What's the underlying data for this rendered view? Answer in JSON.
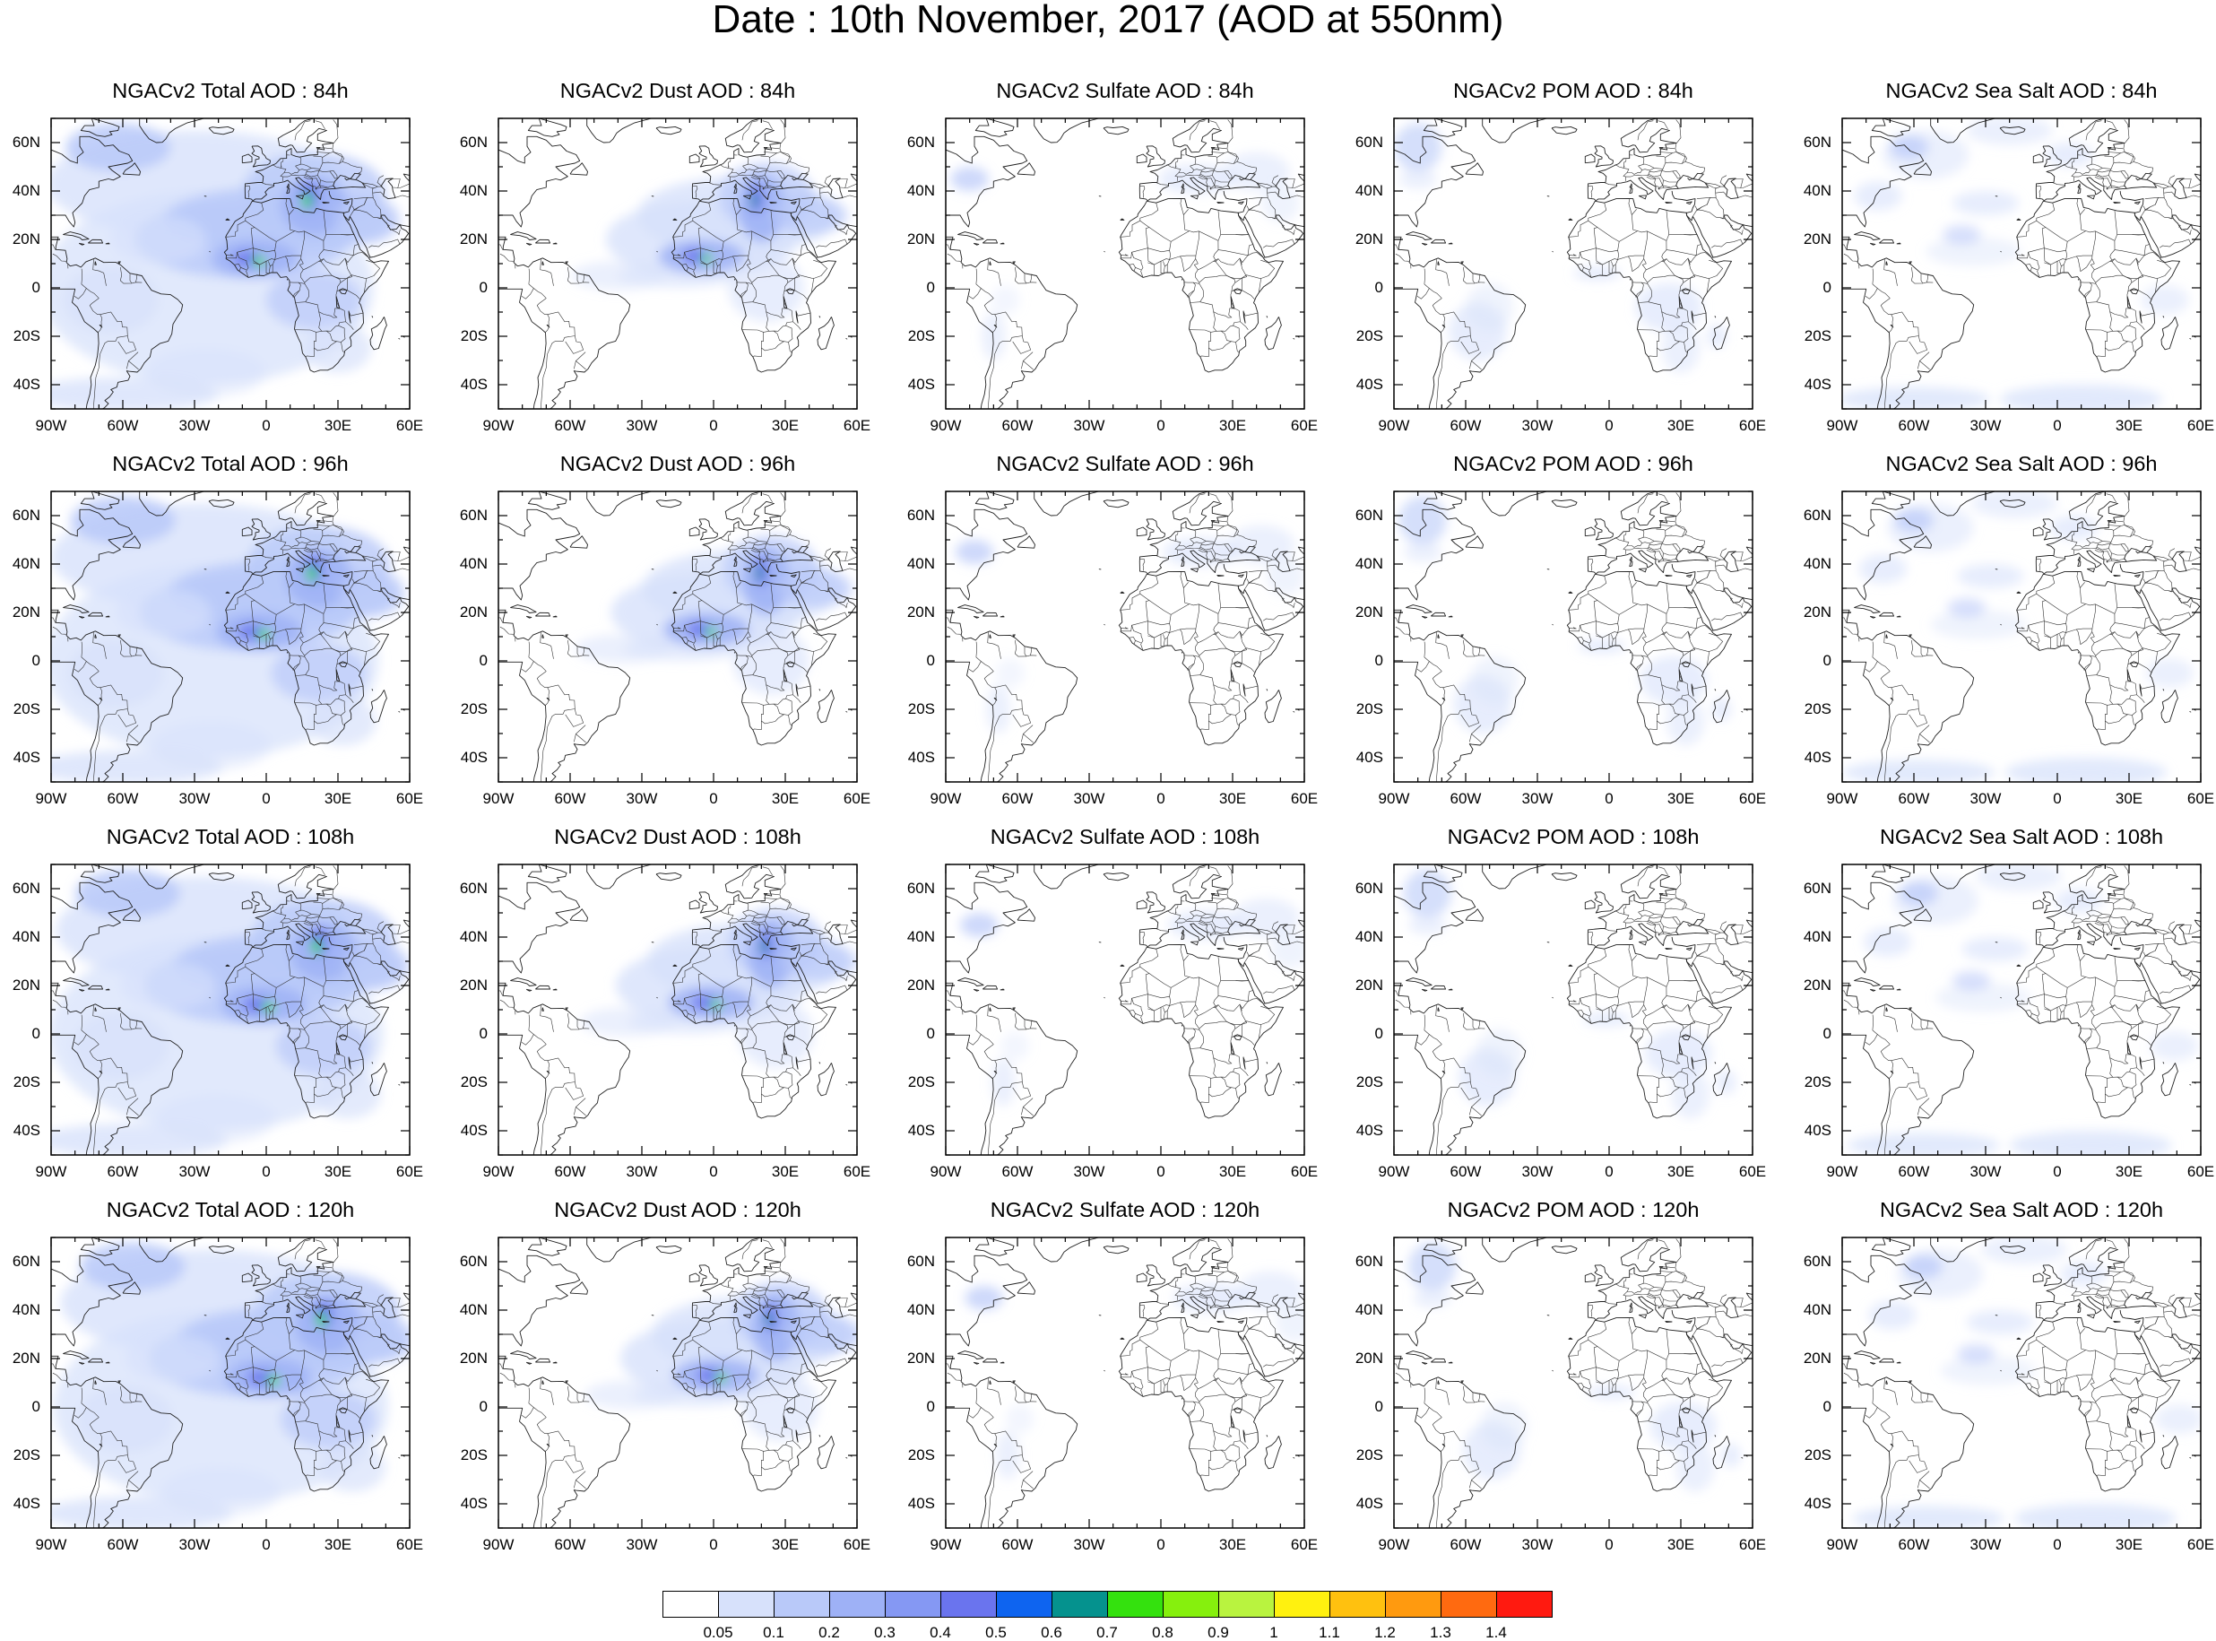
{
  "title": "Date : 10th November, 2017 (AOD at 550nm)",
  "panels": [
    {
      "title": "NGACv2 Total AOD : 84h",
      "field": "total",
      "hour": 84
    },
    {
      "title": "NGACv2 Dust AOD : 84h",
      "field": "dust",
      "hour": 84
    },
    {
      "title": "NGACv2 Sulfate AOD : 84h",
      "field": "sulfate",
      "hour": 84
    },
    {
      "title": "NGACv2 POM AOD : 84h",
      "field": "pom",
      "hour": 84
    },
    {
      "title": "NGACv2 Sea Salt AOD : 84h",
      "field": "seasalt",
      "hour": 84
    },
    {
      "title": "NGACv2 Total AOD : 96h",
      "field": "total",
      "hour": 96
    },
    {
      "title": "NGACv2 Dust AOD : 96h",
      "field": "dust",
      "hour": 96
    },
    {
      "title": "NGACv2 Sulfate AOD : 96h",
      "field": "sulfate",
      "hour": 96
    },
    {
      "title": "NGACv2 POM AOD : 96h",
      "field": "pom",
      "hour": 96
    },
    {
      "title": "NGACv2 Sea Salt AOD : 96h",
      "field": "seasalt",
      "hour": 96
    },
    {
      "title": "NGACv2 Total AOD : 108h",
      "field": "total",
      "hour": 108
    },
    {
      "title": "NGACv2 Dust AOD : 108h",
      "field": "dust",
      "hour": 108
    },
    {
      "title": "NGACv2 Sulfate AOD : 108h",
      "field": "sulfate",
      "hour": 108
    },
    {
      "title": "NGACv2 POM AOD : 108h",
      "field": "pom",
      "hour": 108
    },
    {
      "title": "NGACv2 Sea Salt AOD : 108h",
      "field": "seasalt",
      "hour": 108
    },
    {
      "title": "NGACv2 Total AOD : 120h",
      "field": "total",
      "hour": 120
    },
    {
      "title": "NGACv2 Dust AOD : 120h",
      "field": "dust",
      "hour": 120
    },
    {
      "title": "NGACv2 Sulfate AOD : 120h",
      "field": "sulfate",
      "hour": 120
    },
    {
      "title": "NGACv2 POM AOD : 120h",
      "field": "pom",
      "hour": 120
    },
    {
      "title": "NGACv2 Sea Salt  AOD : 120h",
      "field": "seasalt",
      "hour": 120
    }
  ],
  "map_extent": {
    "lon": [
      -90,
      60
    ],
    "lat": [
      -50,
      70
    ]
  },
  "lat_ticks": [
    "60N",
    "40N",
    "20N",
    "0",
    "20S",
    "40S"
  ],
  "lon_ticks": [
    "90W",
    "60W",
    "30W",
    "0",
    "30E",
    "60E"
  ],
  "colorbar": {
    "labels": [
      "0.05",
      "0.1",
      "0.2",
      "0.3",
      "0.4",
      "0.5",
      "0.6",
      "0.7",
      "0.8",
      "0.9",
      "1",
      "1.1",
      "1.2",
      "1.3",
      "1.4"
    ],
    "colors": [
      "#ffffff",
      "#d7e1fb",
      "#b9c9f9",
      "#9eb1f6",
      "#8598f3",
      "#6a74ee",
      "#0e64f0",
      "#05928e",
      "#34e10e",
      "#86f00d",
      "#b9f33f",
      "#fff10f",
      "#ffc10f",
      "#ff9a0f",
      "#ff6a10",
      "#ff1a10"
    ]
  }
}
